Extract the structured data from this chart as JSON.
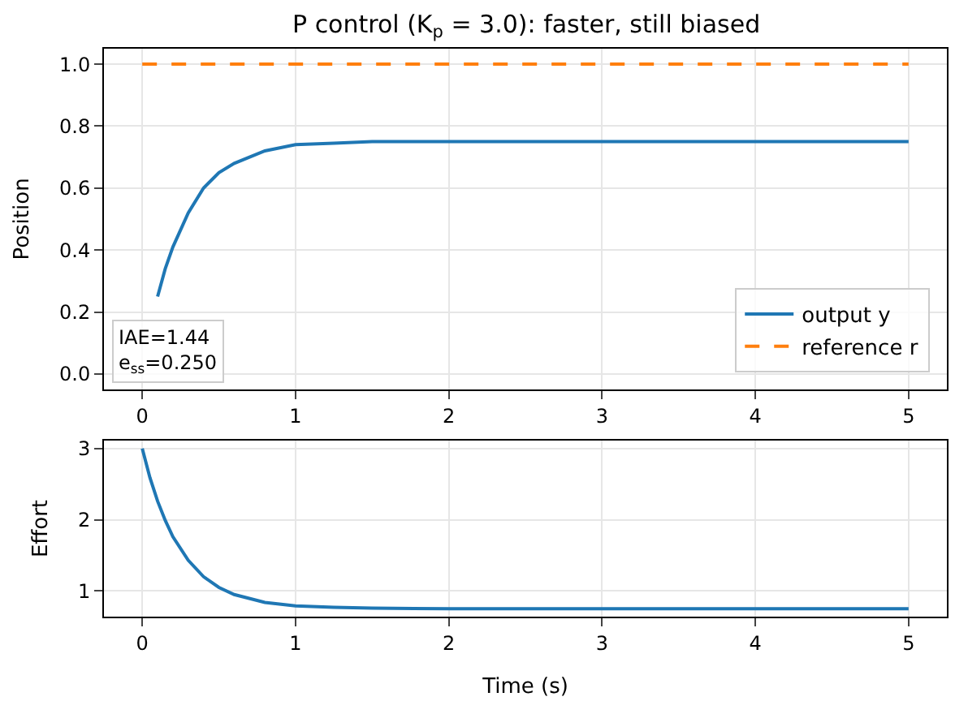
{
  "chart_data": [
    {
      "type": "line",
      "title": "P control (K$_{p}$ = 3.0): faster, still biased",
      "ylabel": "Position",
      "x": [
        0,
        0.05,
        0.1,
        0.15,
        0.2,
        0.3,
        0.4,
        0.5,
        0.6,
        0.8,
        1.0,
        1.25,
        1.5,
        2,
        2.5,
        3,
        4,
        5
      ],
      "series": [
        {
          "name": "output y",
          "color": "#1f77b4",
          "line_style": "solid",
          "values": [
            null,
            null,
            0.25,
            0.34,
            0.41,
            0.52,
            0.6,
            0.65,
            0.68,
            0.72,
            0.74,
            0.745,
            0.75,
            0.75,
            0.75,
            0.75,
            0.75,
            0.75
          ]
        },
        {
          "name": "reference r",
          "color": "#ff7f0e",
          "line_style": "dashed",
          "values": [
            1,
            1,
            1,
            1,
            1,
            1,
            1,
            1,
            1,
            1,
            1,
            1,
            1,
            1,
            1,
            1,
            1,
            1
          ]
        }
      ],
      "xlim": [
        -0.25,
        5.25
      ],
      "xticks": [
        0,
        1,
        2,
        3,
        4,
        5
      ],
      "ylim": [
        -0.05,
        1.05
      ],
      "yticks": [
        {
          "value": 0,
          "label": "0.0"
        },
        {
          "value": 0.2,
          "label": "0.2"
        },
        {
          "value": 0.4,
          "label": "0.4"
        },
        {
          "value": 0.6,
          "label": "0.6"
        },
        {
          "value": 0.8,
          "label": "0.8"
        },
        {
          "value": 1,
          "label": "1.0"
        }
      ],
      "grid": true,
      "legend": "bottom right",
      "annotations": [
        "IAE=1.44\ne$_{ss}$=0.250"
      ]
    },
    {
      "type": "line",
      "xlabel": "Time (s)",
      "ylabel": "Effort",
      "x": [
        0,
        0.05,
        0.1,
        0.15,
        0.2,
        0.3,
        0.4,
        0.5,
        0.6,
        0.8,
        1.0,
        1.25,
        1.5,
        2,
        2.5,
        3,
        4,
        5
      ],
      "series": [
        {
          "color": "#1f77b4",
          "line_style": "solid",
          "values": [
            3,
            2.59,
            2.26,
            1.99,
            1.76,
            1.43,
            1.2,
            1.05,
            0.95,
            0.84,
            0.79,
            0.77,
            0.76,
            0.75,
            0.75,
            0.75,
            0.75,
            0.75
          ]
        }
      ],
      "xlim": [
        -0.25,
        5.25
      ],
      "xticks": [
        0,
        1,
        2,
        3,
        4,
        5
      ],
      "ylim": [
        0.64,
        3.11
      ],
      "yticks": [
        1,
        2,
        3
      ],
      "grid": true
    }
  ]
}
